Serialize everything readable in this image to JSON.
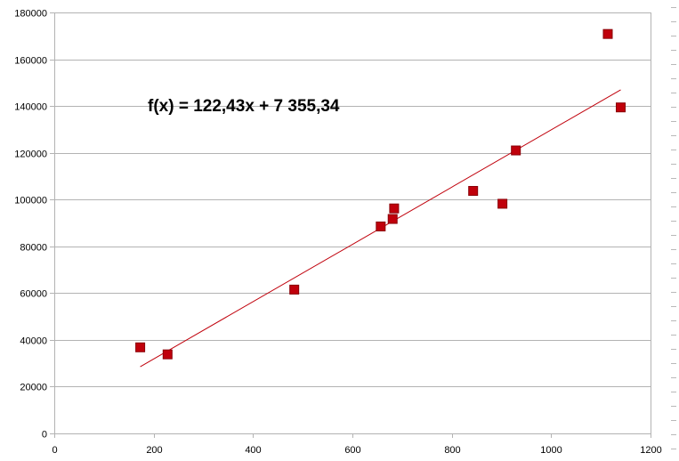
{
  "chart_data": {
    "type": "scatter",
    "title": "",
    "xlabel": "",
    "ylabel": "",
    "xlim": [
      0,
      1200
    ],
    "ylim": [
      0,
      180000
    ],
    "x_ticks": [
      0,
      200,
      400,
      600,
      800,
      1000,
      1200
    ],
    "y_ticks": [
      0,
      20000,
      40000,
      60000,
      80000,
      100000,
      120000,
      140000,
      160000,
      180000
    ],
    "grid": "horizontal",
    "legend": "none",
    "marker_color": "#c0000b",
    "trend_color": "#c0000b",
    "series": [
      {
        "points": [
          {
            "x": 173,
            "y": 36800
          },
          {
            "x": 228,
            "y": 33800
          },
          {
            "x": 483,
            "y": 61500
          },
          {
            "x": 657,
            "y": 88500
          },
          {
            "x": 681,
            "y": 91700
          },
          {
            "x": 684,
            "y": 96200
          },
          {
            "x": 843,
            "y": 103700
          },
          {
            "x": 902,
            "y": 98200
          },
          {
            "x": 929,
            "y": 121000
          },
          {
            "x": 1114,
            "y": 170800
          },
          {
            "x": 1140,
            "y": 139400
          }
        ]
      }
    ],
    "trendline": {
      "slope": 122.43,
      "intercept": 7355.34,
      "x_start": 173,
      "x_end": 1140,
      "equation_label": "f(x) = 122,43x + 7 355,34"
    }
  }
}
